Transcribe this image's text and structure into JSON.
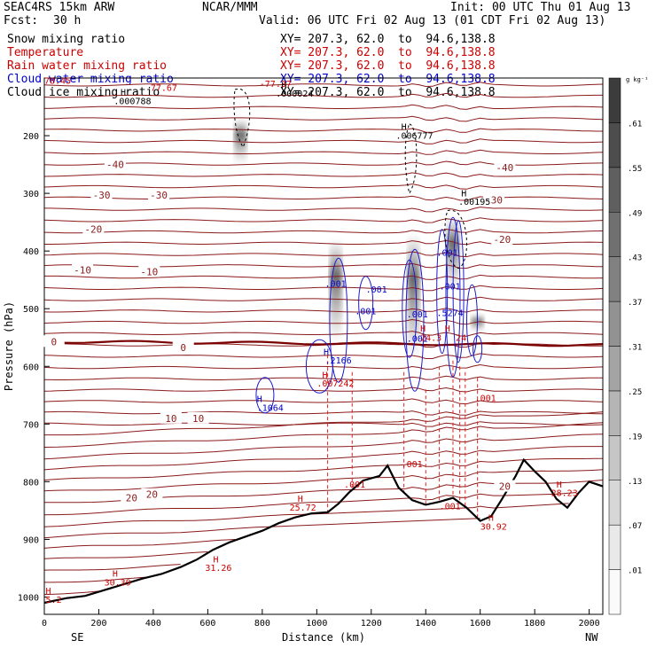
{
  "header": {
    "title_left": "SEAC4RS 15km ARW",
    "center": "NCAR/MMM",
    "init": "Init: 00 UTC Thu 01 Aug 13",
    "fcst_label": "Fcst:",
    "fcst_value": "30 h",
    "valid": "Valid: 06 UTC Fri 02 Aug 13 (01 CDT Fri 02 Aug 13)"
  },
  "fields": [
    {
      "name": "Snow mixing ratio",
      "xy": "XY= 207.3, 62.0  to  94.6,138.8",
      "color": "#000000"
    },
    {
      "name": "Temperature",
      "xy": "XY= 207.3, 62.0  to  94.6,138.8",
      "color": "#cc0000"
    },
    {
      "name": "Rain water mixing ratio",
      "xy": "XY= 207.3, 62.0  to  94.6,138.8",
      "color": "#cc0000"
    },
    {
      "name": "Cloud water mixing ratio",
      "xy": "XY= 207.3, 62.0  to  94.6,138.8",
      "color": "#0000cc"
    },
    {
      "name": "Cloud ice mixing ratio",
      "xy": "XY= 207.3, 62.0  to  94.6,138.8",
      "color": "#000000"
    }
  ],
  "chart_data": {
    "type": "cross-section",
    "xlabel": "Distance (km)",
    "ylabel": "Pressure (hPa)",
    "xlim": [
      0,
      2050
    ],
    "ylim": [
      1030,
      100
    ],
    "x_ticks": [
      0,
      200,
      400,
      600,
      800,
      1000,
      1200,
      1400,
      1600,
      1800,
      2000
    ],
    "y_ticks": [
      200,
      300,
      400,
      500,
      600,
      700,
      800,
      900,
      1000
    ],
    "left_end_label": "SE",
    "right_end_label": "NW",
    "colorbar": {
      "unit": "g kg⁻¹",
      "levels": [
        ".01",
        ".07",
        ".13",
        ".19",
        ".25",
        ".31",
        ".37",
        ".43",
        ".49",
        ".55",
        ".61"
      ]
    },
    "temperature_contours": [
      {
        "value": -40,
        "p": 250,
        "label": "-40"
      },
      {
        "value": -30,
        "p": 305,
        "label": "-30"
      },
      {
        "value": -20,
        "p": 362,
        "label": "-20"
      },
      {
        "value": -10,
        "p": 435,
        "label": "-10"
      },
      {
        "value": 0,
        "p": 558,
        "label": "0"
      },
      {
        "value": 10,
        "p": 690,
        "label": "10"
      },
      {
        "value": 20,
        "p": 805,
        "label": "20"
      }
    ],
    "temperature_labels": [
      {
        "text": "-40",
        "x": 260,
        "p": 250
      },
      {
        "text": "-40",
        "x": 1690,
        "p": 255
      },
      {
        "text": "-30",
        "x": 210,
        "p": 303
      },
      {
        "text": "-30",
        "x": 420,
        "p": 303
      },
      {
        "text": "-30",
        "x": 1650,
        "p": 311
      },
      {
        "text": "-20",
        "x": 180,
        "p": 362
      },
      {
        "text": "-20",
        "x": 1680,
        "p": 380
      },
      {
        "text": "-10",
        "x": 140,
        "p": 433
      },
      {
        "text": "-10",
        "x": 385,
        "p": 436
      },
      {
        "text": "0",
        "x": 35,
        "p": 557
      },
      {
        "text": "0",
        "x": 510,
        "p": 567
      },
      {
        "text": "10",
        "x": 465,
        "p": 690
      },
      {
        "text": "10",
        "x": 565,
        "p": 690
      },
      {
        "text": "20",
        "x": 320,
        "p": 828
      },
      {
        "text": "20",
        "x": 395,
        "p": 822
      },
      {
        "text": "20",
        "x": 1690,
        "p": 808
      }
    ],
    "terrain_pressure": [
      [
        0,
        1010
      ],
      [
        80,
        1002
      ],
      [
        150,
        998
      ],
      [
        220,
        988
      ],
      [
        290,
        978
      ],
      [
        360,
        968
      ],
      [
        430,
        960
      ],
      [
        500,
        948
      ],
      [
        560,
        935
      ],
      [
        620,
        918
      ],
      [
        680,
        905
      ],
      [
        740,
        895
      ],
      [
        800,
        885
      ],
      [
        860,
        872
      ],
      [
        920,
        862
      ],
      [
        980,
        855
      ],
      [
        1040,
        853
      ],
      [
        1080,
        838
      ],
      [
        1120,
        818
      ],
      [
        1170,
        798
      ],
      [
        1230,
        790
      ],
      [
        1260,
        772
      ],
      [
        1300,
        810
      ],
      [
        1350,
        832
      ],
      [
        1400,
        840
      ],
      [
        1450,
        835
      ],
      [
        1500,
        828
      ],
      [
        1550,
        845
      ],
      [
        1600,
        868
      ],
      [
        1640,
        860
      ],
      [
        1680,
        830
      ],
      [
        1730,
        790
      ],
      [
        1760,
        762
      ],
      [
        1800,
        782
      ],
      [
        1840,
        800
      ],
      [
        1880,
        830
      ],
      [
        1920,
        845
      ],
      [
        1960,
        820
      ],
      [
        2000,
        800
      ],
      [
        2050,
        808
      ]
    ],
    "annotations": [
      {
        "text": "H",
        "x": 5,
        "p": 995,
        "color": "#cc0000"
      },
      {
        "text": "5.2",
        "x": 5,
        "p": 1010,
        "color": "#cc0000"
      },
      {
        "text": "H",
        "x": 250,
        "p": 965,
        "color": "#cc0000"
      },
      {
        "text": "30.39",
        "x": 220,
        "p": 980,
        "color": "#cc0000"
      },
      {
        "text": "H",
        "x": 620,
        "p": 940,
        "color": "#cc0000"
      },
      {
        "text": "31.26",
        "x": 590,
        "p": 955,
        "color": "#cc0000"
      },
      {
        "text": "H",
        "x": 930,
        "p": 835,
        "color": "#cc0000"
      },
      {
        "text": "25.72",
        "x": 900,
        "p": 850,
        "color": "#cc0000"
      },
      {
        "text": "H",
        "x": 1630,
        "p": 868,
        "color": "#cc0000"
      },
      {
        "text": "30.92",
        "x": 1600,
        "p": 883,
        "color": "#cc0000"
      },
      {
        "text": "H",
        "x": 1880,
        "p": 810,
        "color": "#cc0000"
      },
      {
        "text": "28.23",
        "x": 1860,
        "p": 825,
        "color": "#cc0000"
      },
      {
        "text": "H",
        "x": 280,
        "p": 130,
        "color": "#000000"
      },
      {
        "text": ".000788",
        "x": 255,
        "p": 145,
        "color": "#000000"
      },
      {
        "text": "H",
        "x": 870,
        "p": 118,
        "color": "#000000"
      },
      {
        "text": ".000024",
        "x": 850,
        "p": 132,
        "color": "#000000"
      },
      {
        "text": "H",
        "x": 1310,
        "p": 190,
        "color": "#000000"
      },
      {
        "text": ".006777",
        "x": 1290,
        "p": 205,
        "color": "#000000"
      },
      {
        "text": "H",
        "x": 1530,
        "p": 305,
        "color": "#000000"
      },
      {
        "text": ".00195",
        "x": 1520,
        "p": 320,
        "color": "#000000"
      },
      {
        "text": "77.67",
        "x": 390,
        "p": 122,
        "color": "#cc0000"
      },
      {
        "text": "-77.37",
        "x": 790,
        "p": 115,
        "color": "#cc0000"
      },
      {
        "text": "78.45",
        "x": 0,
        "p": 110,
        "color": "#cc0000"
      },
      {
        "text": ".001",
        "x": 1030,
        "p": 462,
        "color": "#0000cc"
      },
      {
        "text": ".001",
        "x": 1180,
        "p": 472,
        "color": "#0000cc"
      },
      {
        "text": ".001",
        "x": 1140,
        "p": 510,
        "color": "#0000cc"
      },
      {
        "text": ".001",
        "x": 1330,
        "p": 515,
        "color": "#0000cc"
      },
      {
        "text": ".001",
        "x": 1330,
        "p": 557,
        "color": "#0000cc"
      },
      {
        "text": ".001",
        "x": 1440,
        "p": 408,
        "color": "#0000cc"
      },
      {
        "text": ".001",
        "x": 1450,
        "p": 467,
        "color": "#0000cc"
      },
      {
        "text": ".5274",
        "x": 1440,
        "p": 513,
        "color": "#0000cc"
      },
      {
        "text": ".2166",
        "x": 1030,
        "p": 595,
        "color": "#0000cc"
      },
      {
        "text": "H",
        "x": 1025,
        "p": 580,
        "color": "#0000cc"
      },
      {
        "text": ".1064",
        "x": 780,
        "p": 677,
        "color": "#0000cc"
      },
      {
        "text": "H",
        "x": 780,
        "p": 662,
        "color": "#0000cc"
      },
      {
        "text": "H",
        "x": 1020,
        "p": 620,
        "color": "#cc0000"
      },
      {
        "text": ".007242",
        "x": 1000,
        "p": 635,
        "color": "#cc0000"
      },
      {
        "text": "H",
        "x": 1380,
        "p": 540,
        "color": "#cc0000"
      },
      {
        "text": "24.3",
        "x": 1380,
        "p": 556,
        "color": "#cc0000"
      },
      {
        "text": "H",
        "x": 1470,
        "p": 540,
        "color": "#cc0000"
      },
      {
        "text": "24",
        "x": 1510,
        "p": 556,
        "color": "#cc0000"
      },
      {
        "text": ".001",
        "x": 1310,
        "p": 775,
        "color": "#cc0000"
      },
      {
        "text": ".001",
        "x": 1100,
        "p": 810,
        "color": "#cc0000"
      },
      {
        "text": ".001",
        "x": 1580,
        "p": 660,
        "color": "#cc0000"
      },
      {
        "text": ".001",
        "x": 1450,
        "p": 848,
        "color": "#cc0000"
      }
    ]
  }
}
